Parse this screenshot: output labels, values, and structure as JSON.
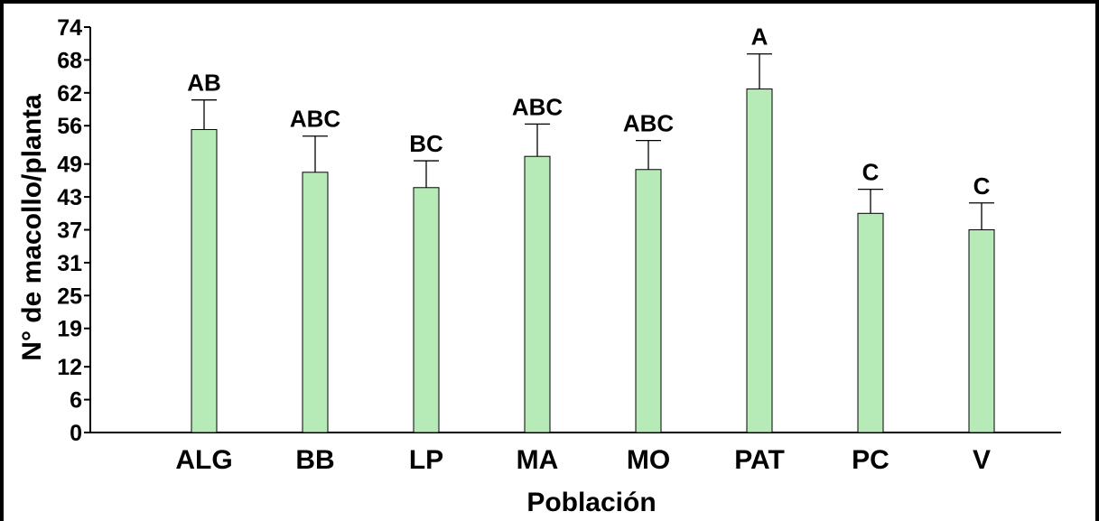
{
  "chart_data": {
    "type": "bar",
    "title": "",
    "xlabel": "Población",
    "ylabel": "N° de macollo/planta",
    "ylim": [
      0,
      74
    ],
    "yticks": [
      0,
      6,
      12,
      19,
      25,
      31,
      37,
      43,
      49,
      56,
      62,
      68,
      74
    ],
    "categories": [
      "ALG",
      "BB",
      "LP",
      "MA",
      "MO",
      "PAT",
      "PC",
      "V"
    ],
    "values": [
      55.3,
      47.5,
      44.7,
      50.4,
      48.0,
      62.7,
      40.0,
      37.0
    ],
    "errors": [
      5.4,
      6.6,
      4.9,
      5.9,
      5.3,
      6.4,
      4.4,
      4.9
    ],
    "letters": [
      "AB",
      "ABC",
      "BC",
      "ABC",
      "ABC",
      "A",
      "C",
      "C"
    ],
    "bar_color": "#b6ebb8",
    "grid": false,
    "legend": "none"
  }
}
